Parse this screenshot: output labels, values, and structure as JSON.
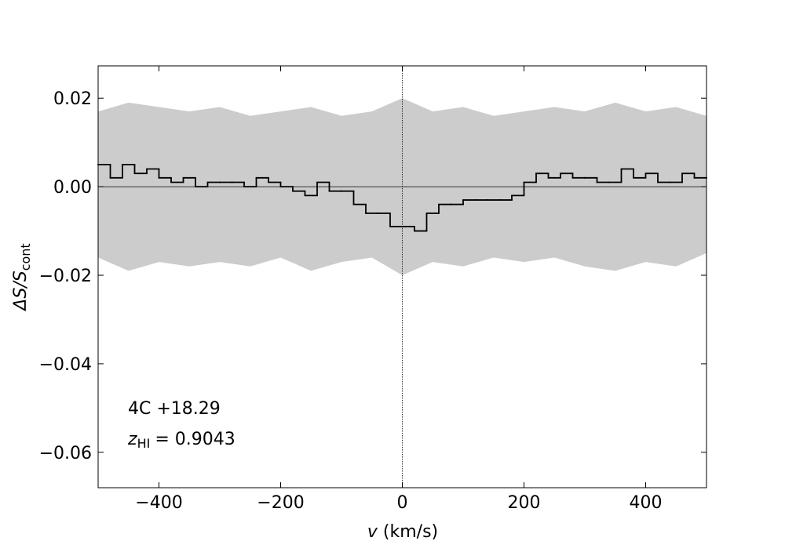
{
  "chart_data": {
    "type": "step",
    "xlabel_symbol": "v",
    "xlabel_unit": "(km/s)",
    "ylabel": "ΔS/S",
    "ylabel_subscript": "cont",
    "source": "4C +18.29",
    "redshift_symbol": "z",
    "redshift_subscript": "HI",
    "redshift_text": "= 0.9043",
    "xlim": [
      -500,
      500
    ],
    "ylim": [
      -0.068,
      0.0273
    ],
    "xticks": [
      {
        "value": -400,
        "label": "−400"
      },
      {
        "value": -200,
        "label": "−200"
      },
      0,
      200,
      400
    ],
    "yticks": [
      {
        "value": -0.06,
        "label": "−0.06"
      },
      {
        "value": -0.04,
        "label": "−0.04"
      },
      {
        "value": -0.02,
        "label": "−0.02"
      },
      {
        "value": 0,
        "label": "0.00"
      },
      0.02
    ],
    "hline": 0,
    "vline": 0,
    "x": [
      -490,
      -470,
      -450,
      -430,
      -410,
      -390,
      -370,
      -350,
      -330,
      -310,
      -290,
      -270,
      -250,
      -230,
      -210,
      -190,
      -170,
      -150,
      -130,
      -110,
      -90,
      -70,
      -50,
      -30,
      -10,
      10,
      30,
      50,
      70,
      90,
      110,
      130,
      150,
      170,
      190,
      210,
      230,
      250,
      270,
      290,
      310,
      330,
      350,
      370,
      390,
      410,
      430,
      450,
      470,
      490
    ],
    "series": [
      {
        "name": "spectrum",
        "color": "#000000",
        "values": [
          0.005,
          0.002,
          0.005,
          0.003,
          0.004,
          0.002,
          0.001,
          0.002,
          0.0,
          0.001,
          0.001,
          0.001,
          0.0,
          0.002,
          0.001,
          0.0,
          -0.001,
          -0.002,
          0.001,
          -0.001,
          -0.001,
          -0.004,
          -0.006,
          -0.006,
          -0.009,
          -0.009,
          -0.01,
          -0.006,
          -0.004,
          -0.004,
          -0.003,
          -0.003,
          -0.003,
          -0.003,
          -0.002,
          0.001,
          0.003,
          0.002,
          0.003,
          0.002,
          0.002,
          0.001,
          0.001,
          0.004,
          0.002,
          0.003,
          0.001,
          0.001,
          0.003,
          0.002
        ]
      }
    ],
    "noise": {
      "color": "#cccccc",
      "x": [
        -500,
        -450,
        -400,
        -350,
        -300,
        -250,
        -200,
        -150,
        -100,
        -50,
        0,
        50,
        100,
        150,
        200,
        250,
        300,
        350,
        400,
        450,
        500
      ],
      "upper": [
        0.017,
        0.019,
        0.018,
        0.017,
        0.018,
        0.016,
        0.017,
        0.018,
        0.016,
        0.017,
        0.02,
        0.017,
        0.018,
        0.016,
        0.017,
        0.018,
        0.017,
        0.019,
        0.017,
        0.018,
        0.016
      ],
      "lower": [
        -0.016,
        -0.019,
        -0.017,
        -0.018,
        -0.017,
        -0.018,
        -0.016,
        -0.019,
        -0.017,
        -0.016,
        -0.02,
        -0.017,
        -0.018,
        -0.016,
        -0.017,
        -0.016,
        -0.018,
        -0.019,
        -0.017,
        -0.018,
        -0.015
      ]
    }
  }
}
